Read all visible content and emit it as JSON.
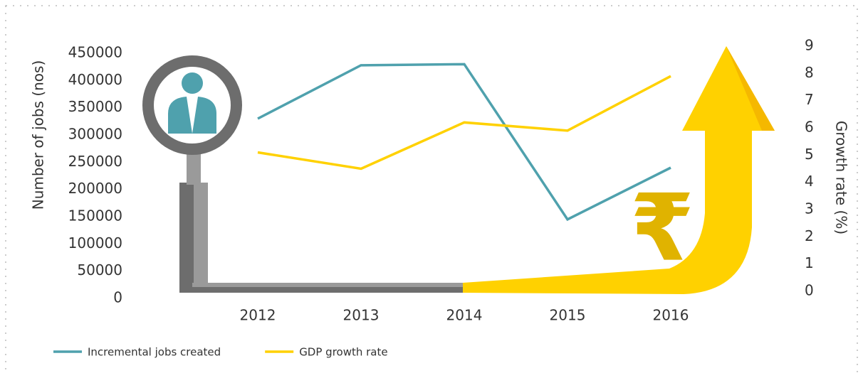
{
  "chart_data": {
    "type": "line",
    "categories": [
      "2012",
      "2013",
      "2014",
      "2015",
      "2016"
    ],
    "series": [
      {
        "name": "Incremental jobs created",
        "color": "#4fa1ad",
        "values": [
          330000,
          428000,
          430000,
          145000,
          240000
        ]
      },
      {
        "name": "GDP growth rate",
        "color": "#ffd100",
        "axis": "y2",
        "values": [
          5.1,
          4.5,
          6.2,
          5.9,
          7.9
        ]
      }
    ],
    "y_label": "Number of jobs (nos)",
    "y2_label": "Growth rate (%)",
    "ylim": [
      0,
      450000
    ],
    "yticks": [
      0,
      50000,
      100000,
      150000,
      200000,
      250000,
      300000,
      350000,
      400000,
      450000
    ],
    "y2lim": [
      0,
      9
    ],
    "y2ticks": [
      0,
      1,
      2,
      3,
      4,
      5,
      6,
      7,
      8,
      9
    ],
    "legend": "bottom-left"
  }
}
